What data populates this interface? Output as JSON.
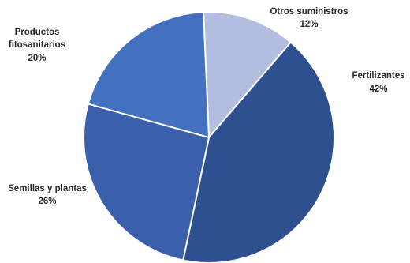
{
  "chart_data": {
    "type": "pie",
    "title": "",
    "start_angle_deg": 0,
    "slices": [
      {
        "label": "Otros suministros",
        "value": 12,
        "value_label": "12%",
        "color": "#b3bde0"
      },
      {
        "label": "Fertilizantes",
        "value": 42,
        "value_label": "42%",
        "color": "#2f5090"
      },
      {
        "label": "Semillas y plantas",
        "value": 26,
        "value_label": "26%",
        "color": "#3a60ab"
      },
      {
        "label": "Productos fitosanitarios",
        "value": 20,
        "value_label": "20%",
        "color": "#4470c0"
      }
    ]
  }
}
